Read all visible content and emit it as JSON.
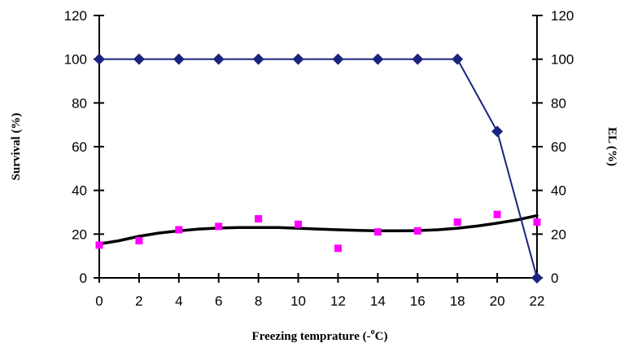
{
  "chart_data": {
    "type": "line",
    "title": "",
    "xlabel": "Freezing temprature (-°C)",
    "xlabel_parts": {
      "before": "Freezing temprature (-",
      "sup": "o",
      "after": "C)"
    },
    "ylabel_left": "Survival (%)",
    "ylabel_right": "EL (%)",
    "x_ticks": [
      0,
      2,
      4,
      6,
      8,
      10,
      12,
      14,
      16,
      18,
      20,
      22
    ],
    "y_ticks": [
      0,
      20,
      40,
      60,
      80,
      100,
      120
    ],
    "xlim": [
      0,
      22
    ],
    "ylim_left": [
      0,
      120
    ],
    "ylim_right": [
      0,
      120
    ],
    "grid": false,
    "legend": "none",
    "series": [
      {
        "kind": "line-markers",
        "marker": "diamond",
        "axis": "left",
        "color": "#1a237e",
        "x": [
          0,
          2,
          4,
          6,
          8,
          10,
          12,
          14,
          16,
          18,
          20,
          22
        ],
        "values": [
          100,
          100,
          100,
          100,
          100,
          100,
          100,
          100,
          100,
          100,
          67,
          0
        ]
      },
      {
        "kind": "scatter",
        "marker": "square",
        "axis": "right",
        "color": "#ff00ff",
        "x": [
          0,
          2,
          4,
          6,
          8,
          10,
          12,
          14,
          16,
          18,
          20,
          22
        ],
        "values": [
          15,
          17,
          22,
          23.5,
          27,
          24.5,
          13.5,
          21,
          21.5,
          25.5,
          29,
          25.5
        ]
      },
      {
        "kind": "trendline",
        "axis": "right",
        "color": "#000000",
        "x": [
          0,
          1,
          2,
          3,
          4,
          5,
          6,
          7,
          8,
          9,
          10,
          11,
          12,
          13,
          14,
          15,
          16,
          17,
          18,
          19,
          20,
          21,
          22
        ],
        "values": [
          15.5,
          17,
          19,
          20.5,
          21.5,
          22.3,
          22.8,
          23,
          23,
          23,
          22.7,
          22.3,
          22,
          21.7,
          21.5,
          21.5,
          21.6,
          22,
          22.7,
          23.7,
          25,
          26.5,
          28.5
        ]
      }
    ]
  }
}
